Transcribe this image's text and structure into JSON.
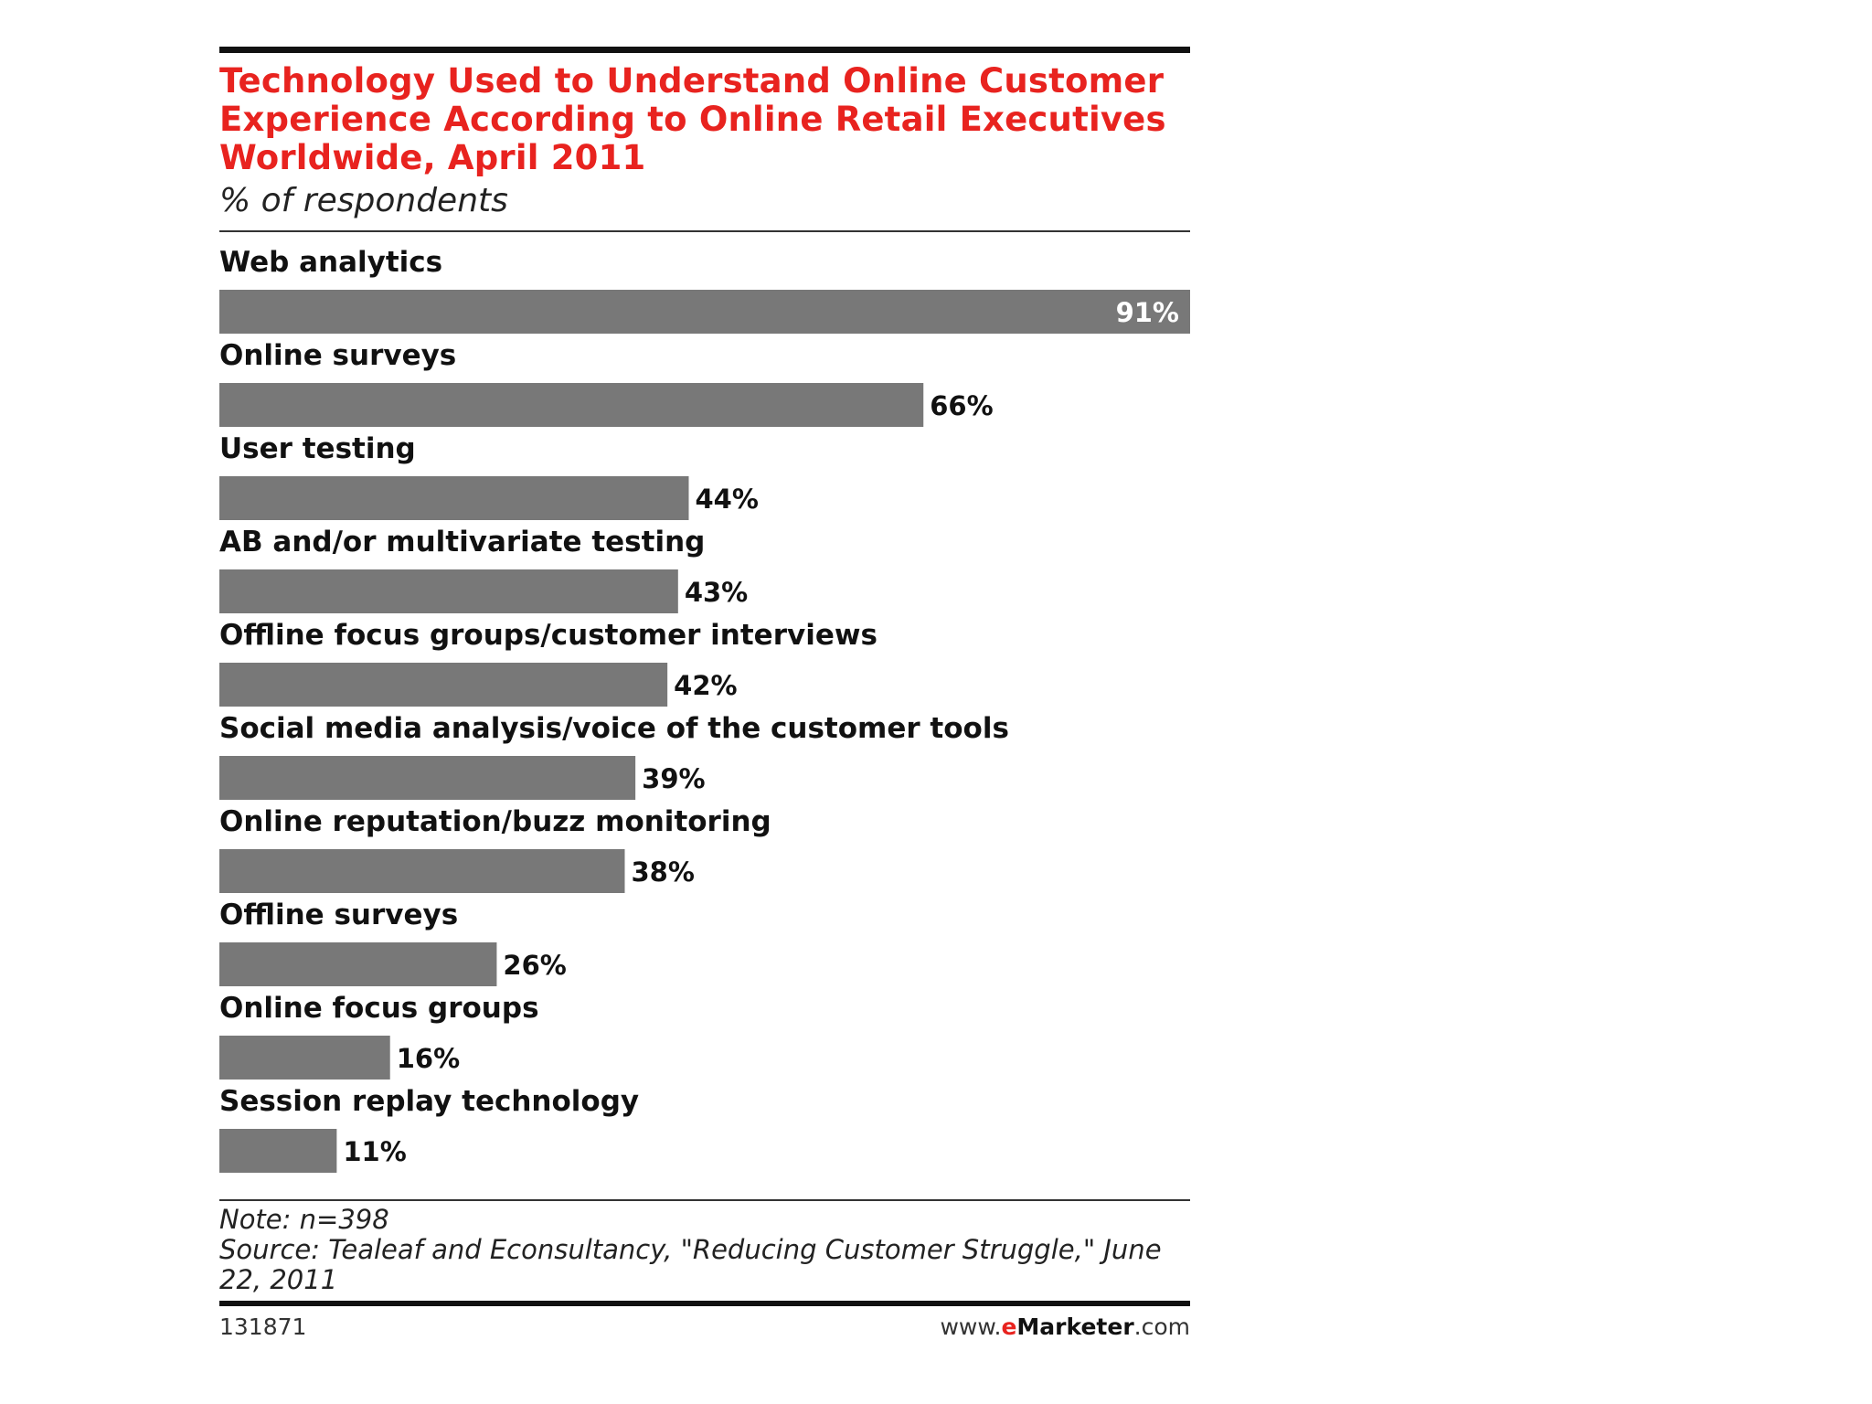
{
  "header": {
    "title": "Technology Used to Understand Online Customer\nExperience According to Online Retail Executives\nWorldwide, April 2011",
    "subtitle": "% of respondents"
  },
  "footer": {
    "note": "Note: n=398",
    "source": "Source: Tealeaf and Econsultancy, \"Reducing Customer Struggle,\" June 22, 2011",
    "chart_id": "131871",
    "brand_prefix": "www.",
    "brand_e": "e",
    "brand_name": "Marketer",
    "brand_suffix": ".com"
  },
  "colors": {
    "title": "#e8231f",
    "bar": "#787878",
    "text": "#111111"
  },
  "chart_data": {
    "type": "bar",
    "orientation": "horizontal",
    "title": "Technology Used to Understand Online Customer Experience According to Online Retail Executives Worldwide, April 2011",
    "subtitle": "% of respondents",
    "categories": [
      "Web analytics",
      "Online surveys",
      "User testing",
      "AB and/or multivariate testing",
      "Offline focus groups/customer interviews",
      "Social media analysis/voice of the customer tools",
      "Online reputation/buzz monitoring",
      "Offline surveys",
      "Online focus groups",
      "Session replay technology"
    ],
    "values": [
      91,
      66,
      44,
      43,
      42,
      39,
      38,
      26,
      16,
      11
    ],
    "value_labels": [
      "91%",
      "66%",
      "44%",
      "43%",
      "42%",
      "39%",
      "38%",
      "26%",
      "16%",
      "11%"
    ],
    "xlim": [
      0,
      91
    ],
    "unit": "%",
    "xlabel": "",
    "ylabel": "",
    "grid": false
  }
}
